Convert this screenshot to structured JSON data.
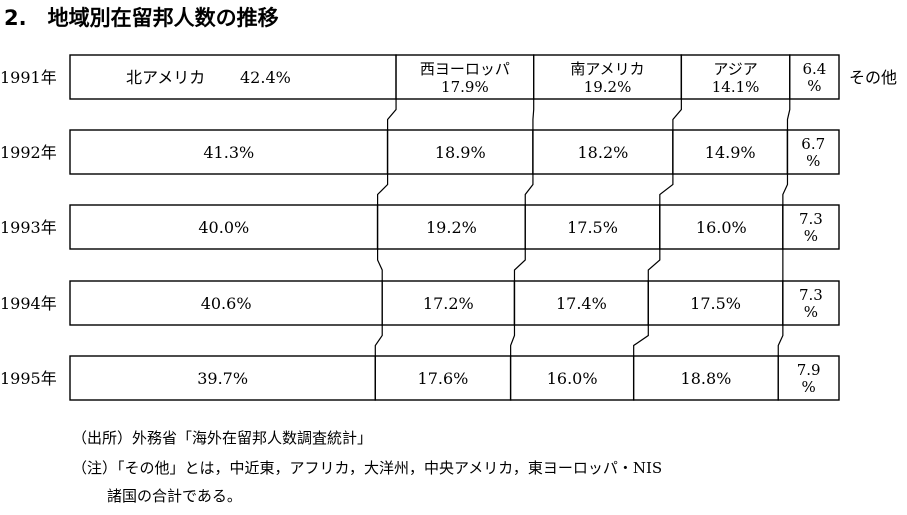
{
  "title": "2.　地域別在留邦人数の推移",
  "chart_data": {
    "type": "bar",
    "stacked": "100%",
    "orientation": "horizontal",
    "categories": [
      "1991年",
      "1992年",
      "1993年",
      "1994年",
      "1995年"
    ],
    "series": [
      {
        "name": "北アメリカ",
        "values": [
          42.4,
          41.3,
          40.0,
          40.6,
          39.7
        ]
      },
      {
        "name": "西ヨーロッパ",
        "values": [
          17.9,
          18.9,
          19.2,
          17.2,
          17.6
        ]
      },
      {
        "name": "南アメリカ",
        "values": [
          19.2,
          18.2,
          17.5,
          17.4,
          16.0
        ]
      },
      {
        "name": "アジア",
        "values": [
          14.1,
          14.9,
          16.0,
          17.5,
          18.8
        ]
      },
      {
        "name": "その他",
        "values": [
          6.4,
          6.7,
          7.3,
          7.3,
          7.9
        ]
      }
    ],
    "labels": [
      [
        "42.4%",
        "17.9%",
        "19.2%",
        "14.1%",
        "6.4%"
      ],
      [
        "41.3%",
        "18.9%",
        "18.2%",
        "14.9%",
        "6.7%"
      ],
      [
        "40.0%",
        "19.2%",
        "17.5%",
        "16.0%",
        "7.3%"
      ],
      [
        "40.6%",
        "17.2%",
        "17.4%",
        "17.5%",
        "7.3%"
      ],
      [
        "39.7%",
        "17.6%",
        "16.0%",
        "18.8%",
        "7.9%"
      ]
    ],
    "unit": "%"
  },
  "notes": {
    "source": "（出所）外務省「海外在留邦人数調査統計」",
    "note_line1": "（注）「その他」とは，中近東，アフリカ，大洋州，中央アメリカ，東ヨーロッパ・NIS",
    "note_line2": "諸国の合計である。"
  }
}
